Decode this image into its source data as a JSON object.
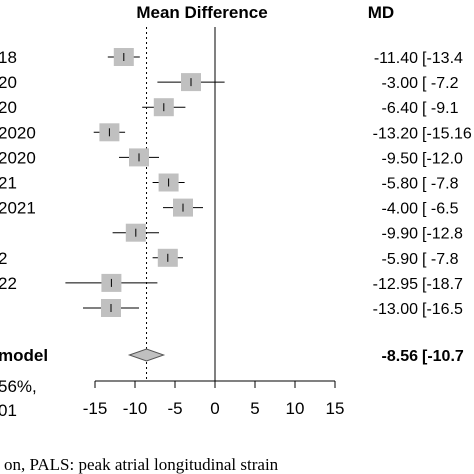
{
  "chart_data": {
    "type": "forest",
    "header_effect": "Mean Difference",
    "header_ci": "MD",
    "xlim": [
      -17,
      16.5
    ],
    "xticks": [
      -15,
      -10,
      -5,
      0,
      5,
      10,
      15
    ],
    "tick_labels": [
      "-15",
      "-10",
      "-5",
      "0",
      "5",
      "10",
      "15"
    ],
    "pooled_ref": -8.56,
    "studies": [
      {
        "label": "18",
        "md": -11.4,
        "lo": -13.4,
        "md_text": "-11.40",
        "ci_text": "[-13.4"
      },
      {
        "label": "20",
        "md": -3.0,
        "lo": -7.2,
        "md_text": "-3.00",
        "ci_text": "[ -7.2"
      },
      {
        "label": "20",
        "md": -6.4,
        "lo": -9.1,
        "md_text": "-6.40",
        "ci_text": "[ -9.1"
      },
      {
        "label": "2020",
        "md": -13.2,
        "lo": -15.16,
        "md_text": "-13.20",
        "ci_text": "[-15.16"
      },
      {
        "label": "2020",
        "md": -9.5,
        "lo": -12.0,
        "md_text": "-9.50",
        "ci_text": "[-12.0"
      },
      {
        "label": "21",
        "md": -5.8,
        "lo": -7.8,
        "md_text": "-5.80",
        "ci_text": "[ -7.8"
      },
      {
        "label": "2021",
        "md": -4.0,
        "lo": -6.5,
        "md_text": "-4.00",
        "ci_text": "[ -6.5"
      },
      {
        "label": "",
        "md": -9.9,
        "lo": -12.8,
        "md_text": "-9.90",
        "ci_text": "[-12.8"
      },
      {
        "label": "2",
        "md": -5.9,
        "lo": -7.8,
        "md_text": "-5.90",
        "ci_text": "[ -7.8"
      },
      {
        "label": "22",
        "md": -12.95,
        "lo": -18.7,
        "md_text": "-12.95",
        "ci_text": "[-18.7"
      },
      {
        "label": "",
        "md": -13.0,
        "lo": -16.5,
        "md_text": "-13.00",
        "ci_text": "[-16.5"
      }
    ],
    "pooled": {
      "label": "model",
      "md": -8.56,
      "lo": -10.7,
      "md_text": "-8.56",
      "ci_text": "[-10.7"
    },
    "heterogeneity_lines": [
      "56%,",
      "01"
    ]
  },
  "caption": "on, PALS: peak atrial longitudinal strain"
}
